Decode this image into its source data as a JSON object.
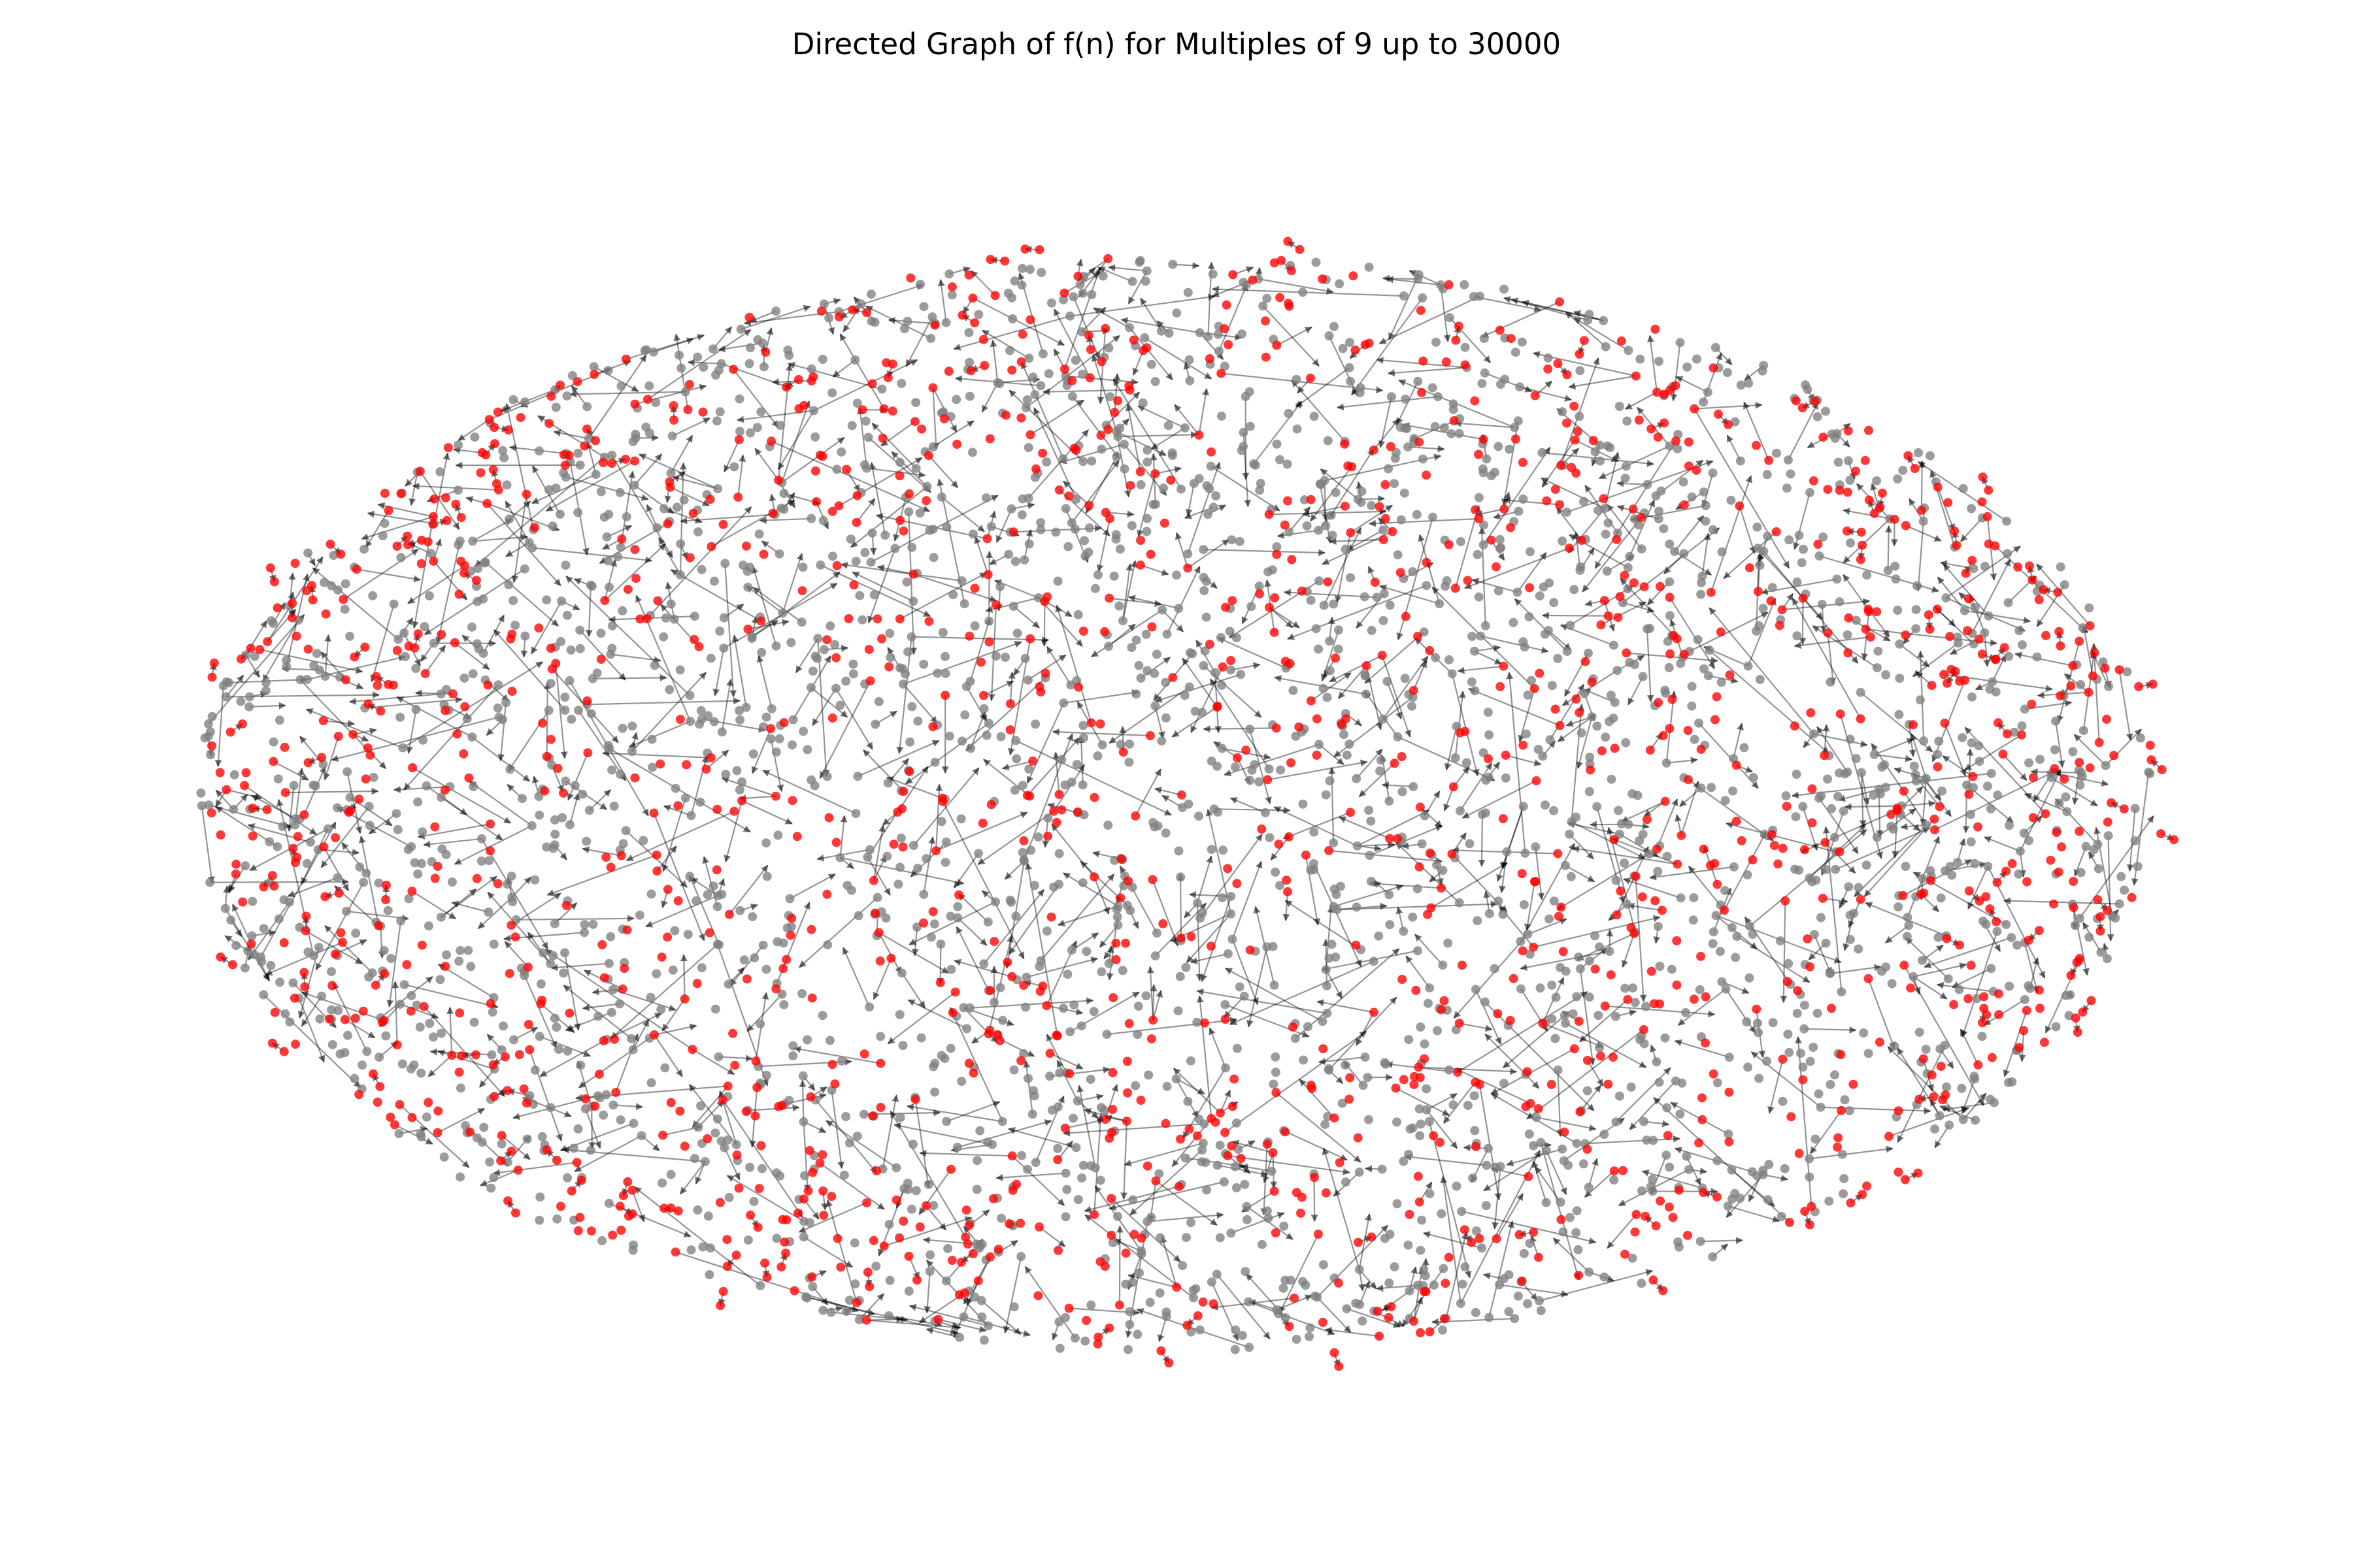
{
  "figure": {
    "title": "Directed Graph of f(n) for Multiples of 9 up to 30000"
  },
  "graph": {
    "type": "directed-graph",
    "layout": "force-directed",
    "node_colors": {
      "regular": "#808080",
      "highlighted": "#ff0000"
    },
    "edge_color": "#000000",
    "regular_node_count": 2400,
    "highlighted_node_count": 1100,
    "edge_count": 1500
  }
}
